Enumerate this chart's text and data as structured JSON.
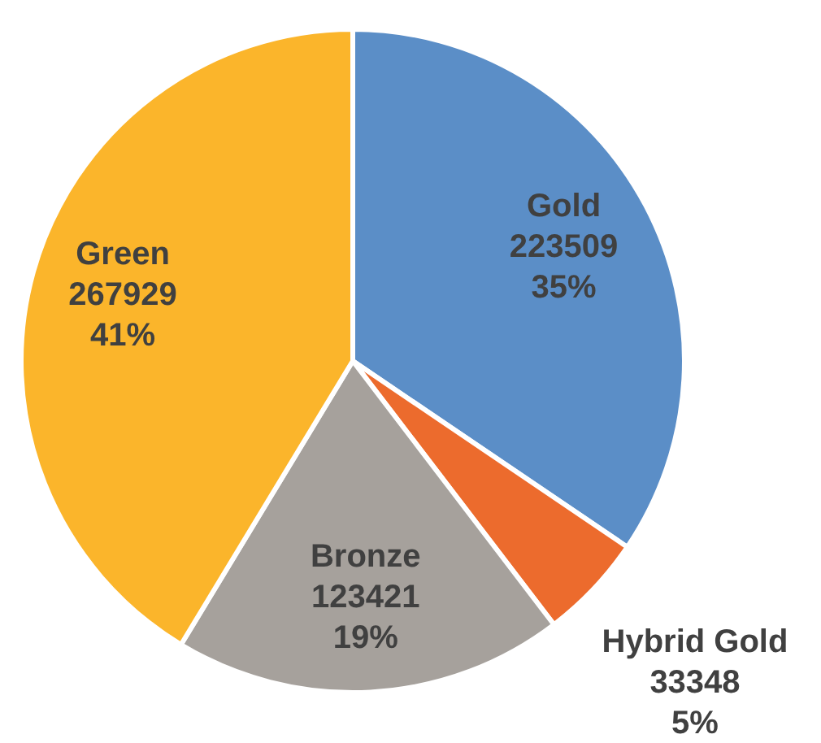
{
  "chart_data": {
    "type": "pie",
    "categories": [
      "Gold",
      "Hybrid Gold",
      "Bronze",
      "Green"
    ],
    "values": [
      223509,
      33348,
      123421,
      267929
    ],
    "data_labels": true,
    "annotations": [
      {
        "text": "35%",
        "x": "Gold"
      },
      {
        "text": "5%",
        "x": "Hybrid Gold"
      },
      {
        "text": "19%",
        "x": "Bronze"
      },
      {
        "text": "41%",
        "x": "Green"
      }
    ],
    "colors": [
      "#5b8ec7",
      "#ec6b2d",
      "#a6a19c",
      "#fbb52b"
    ],
    "legend": false
  }
}
